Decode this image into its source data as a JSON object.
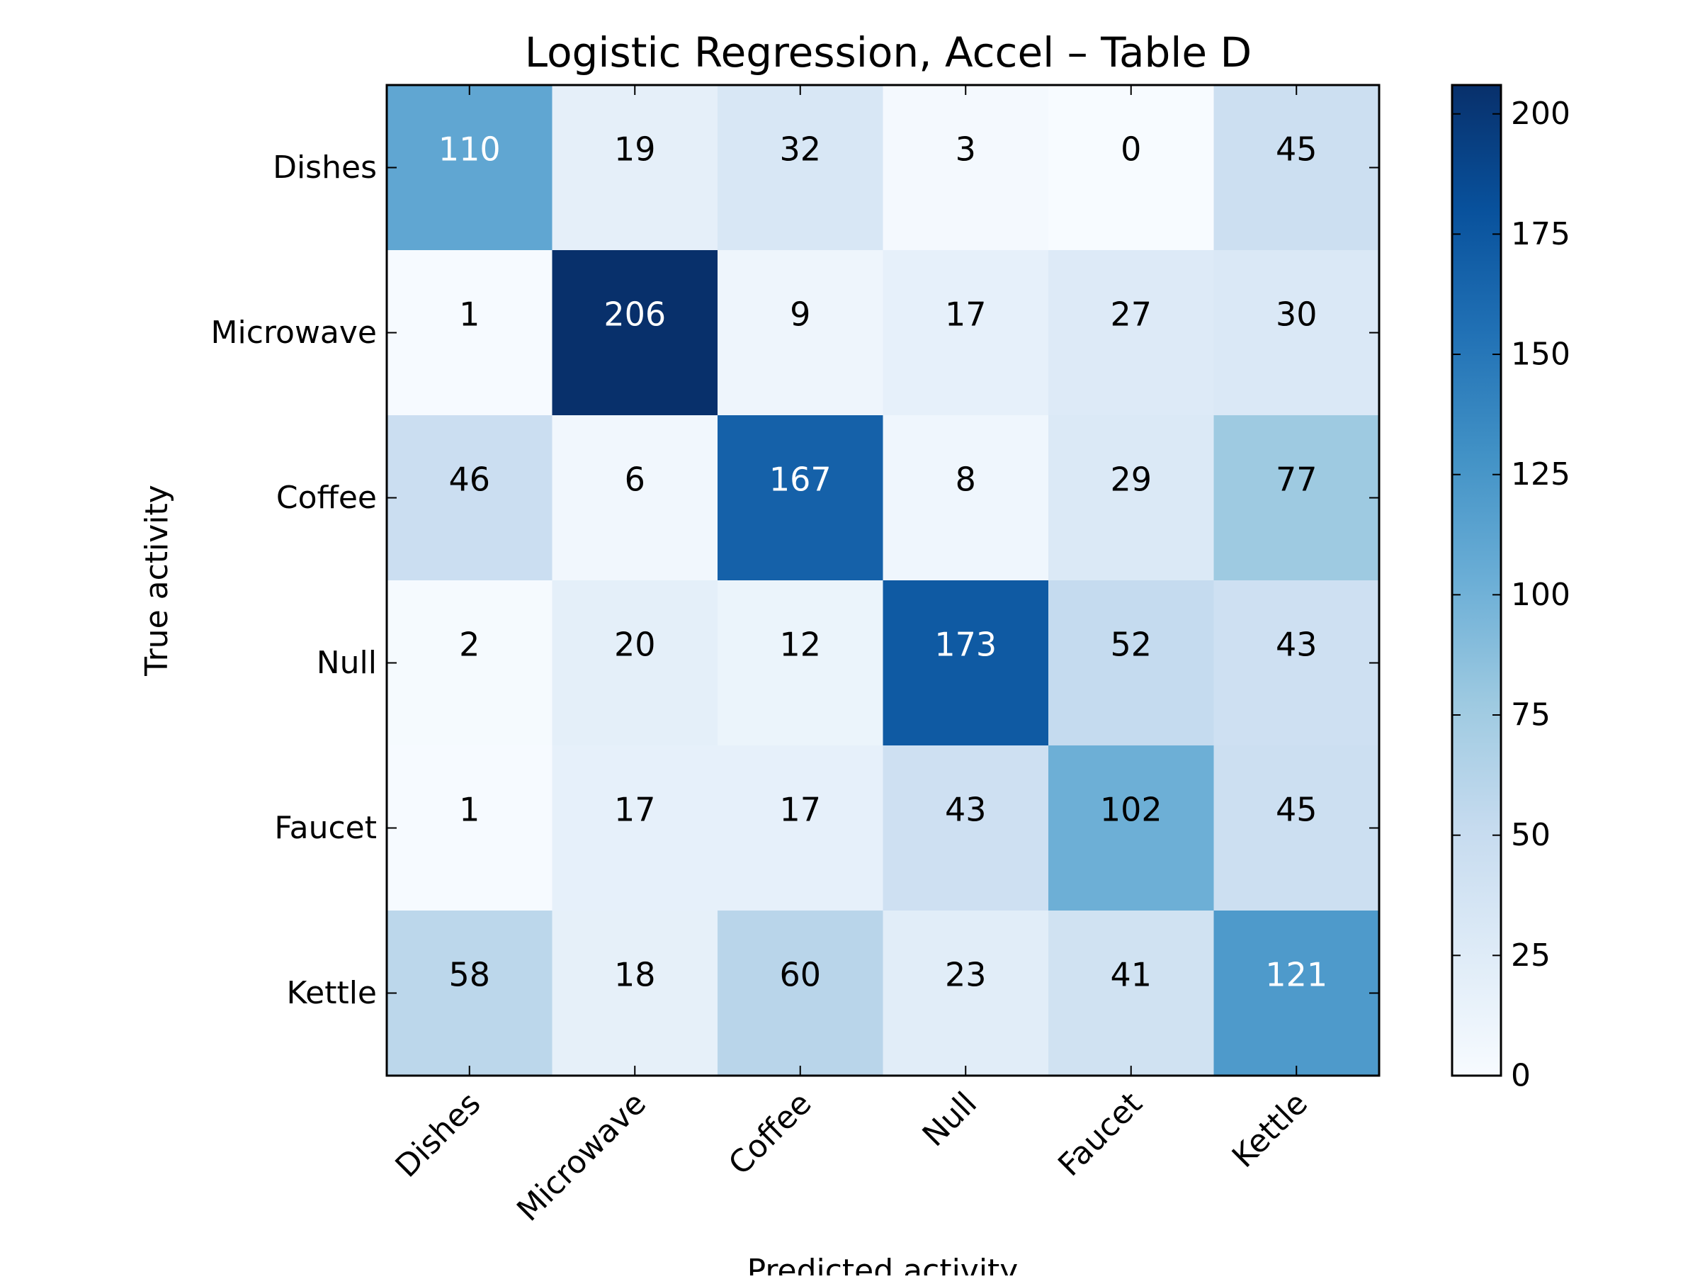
{
  "chart_data": {
    "type": "heatmap",
    "title": "Logistic Regression, Accel – Table D",
    "xlabel": "Predicted activity",
    "ylabel": "True activity",
    "x_categories": [
      "Dishes",
      "Microwave",
      "Coffee",
      "Null",
      "Faucet",
      "Kettle"
    ],
    "y_categories": [
      "Dishes",
      "Microwave",
      "Coffee",
      "Null",
      "Faucet",
      "Kettle"
    ],
    "values": [
      [
        110,
        19,
        32,
        3,
        0,
        45
      ],
      [
        1,
        206,
        9,
        17,
        27,
        30
      ],
      [
        46,
        6,
        167,
        8,
        29,
        77
      ],
      [
        2,
        20,
        12,
        173,
        52,
        43
      ],
      [
        1,
        17,
        17,
        43,
        102,
        45
      ],
      [
        58,
        18,
        60,
        23,
        41,
        121
      ]
    ],
    "colormap": "Blues",
    "color_range": [
      0,
      206
    ],
    "colorbar_ticks": [
      0,
      25,
      50,
      75,
      100,
      125,
      150,
      175,
      200
    ],
    "colors": {
      "low": "#f7fbff",
      "high": "#08306b",
      "text_dark": "#000000",
      "text_light": "#ffffff"
    }
  }
}
